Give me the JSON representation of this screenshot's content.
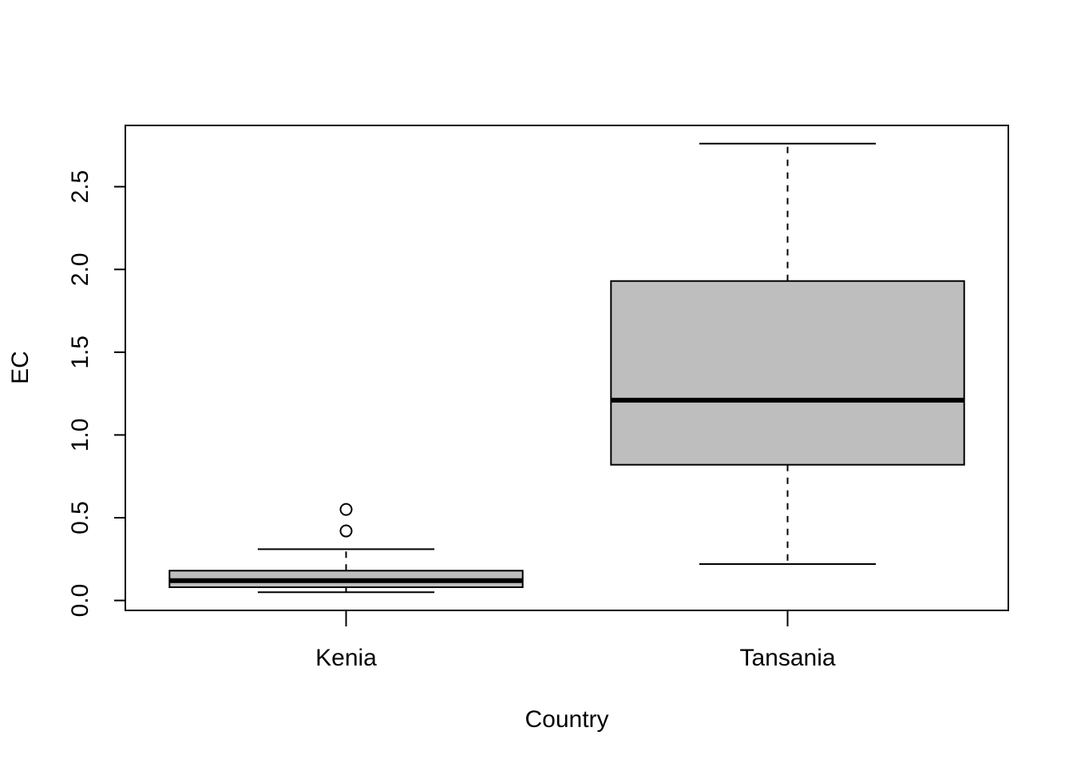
{
  "chart_data": {
    "type": "boxplot",
    "title": "",
    "xlabel": "Country",
    "ylabel": "EC",
    "ylim": [
      -0.06,
      2.87
    ],
    "yticks": [
      0.0,
      0.5,
      1.0,
      1.5,
      2.0,
      2.5
    ],
    "ytick_labels": [
      "0.0",
      "0.5",
      "1.0",
      "1.5",
      "2.0",
      "2.5"
    ],
    "categories": [
      "Kenia",
      "Tansania"
    ],
    "boxes": [
      {
        "category": "Kenia",
        "whisker_low": 0.05,
        "q1": 0.08,
        "median": 0.12,
        "q3": 0.18,
        "whisker_high": 0.31,
        "outliers": [
          0.42,
          0.55
        ]
      },
      {
        "category": "Tansania",
        "whisker_low": 0.22,
        "q1": 0.82,
        "median": 1.21,
        "q3": 1.93,
        "whisker_high": 2.76,
        "outliers": []
      }
    ],
    "colors": {
      "box_fill": "#bebebe",
      "stroke": "#000000"
    },
    "grid": false,
    "legend": "none"
  }
}
